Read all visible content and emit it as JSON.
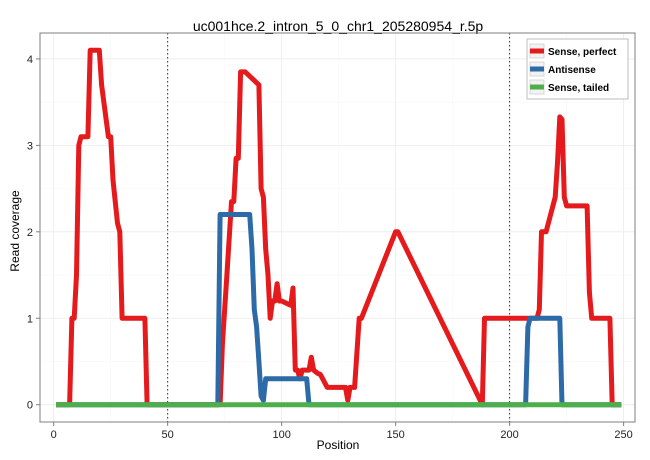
{
  "chart_data": {
    "type": "line",
    "title": "uc001hce.2_intron_5_0_chr1_205280954_r.5p",
    "xlabel": "Position",
    "ylabel": "Read coverage",
    "xlim": [
      -6,
      255
    ],
    "ylim": [
      -0.2,
      4.3
    ],
    "xticks": [
      0,
      50,
      100,
      150,
      200,
      250
    ],
    "yticks": [
      0,
      1,
      2,
      3,
      4
    ],
    "grid": true,
    "legend_position": "top-right",
    "vlines": [
      50,
      200
    ],
    "series": [
      {
        "name": "Sense, perfect",
        "color": "#e41a1c",
        "x": [
          1,
          7,
          8,
          9,
          10,
          11,
          12,
          15,
          16,
          20,
          21,
          24,
          25,
          26,
          28,
          29,
          30,
          40,
          41,
          73,
          74,
          76,
          78,
          79,
          80,
          81,
          82,
          84,
          90,
          91,
          92,
          93,
          94,
          95,
          96,
          97,
          98,
          99,
          100,
          104,
          105,
          106,
          107,
          108,
          109,
          110,
          112,
          113,
          114,
          115,
          116,
          117,
          118,
          120,
          121,
          128,
          129,
          130,
          131,
          132,
          134,
          135,
          150,
          151,
          188,
          189,
          190,
          208,
          209,
          212,
          213,
          214,
          216,
          219,
          220,
          221,
          222,
          223,
          224,
          225,
          226,
          234,
          235,
          236,
          239,
          244,
          245,
          249
        ],
        "y": [
          0,
          0,
          1,
          1,
          1.5,
          3,
          3.1,
          3.1,
          4.1,
          4.1,
          3.7,
          3.1,
          3.1,
          2.6,
          2.1,
          2,
          1,
          1,
          0,
          0,
          0.7,
          1.5,
          2.35,
          2.35,
          2.85,
          2.85,
          3.85,
          3.85,
          3.7,
          2.5,
          2.4,
          1.8,
          1.5,
          1,
          1.2,
          1.2,
          1.4,
          1.2,
          1.2,
          1.15,
          1.35,
          0.4,
          0.4,
          0.3,
          0.4,
          0.4,
          0.4,
          0.55,
          0.4,
          0.38,
          0.36,
          0.35,
          0.3,
          0.2,
          0.2,
          0.2,
          0.05,
          0.2,
          0.2,
          0.2,
          1,
          1,
          2,
          2,
          0,
          1,
          1,
          1,
          1,
          1,
          1.1,
          2,
          2,
          2.3,
          2.4,
          2.8,
          3.33,
          3.3,
          2.4,
          2.3,
          2.3,
          2.3,
          1.3,
          1,
          1,
          1,
          0,
          0
        ]
      },
      {
        "name": "Antisense",
        "color": "#2c6aa8",
        "x": [
          1,
          72,
          73,
          74,
          75,
          86,
          87,
          88,
          89,
          90,
          91,
          92,
          93,
          94,
          95,
          111,
          112,
          207,
          208,
          209,
          210,
          222,
          223,
          249
        ],
        "y": [
          0,
          0,
          2.2,
          2.2,
          2.2,
          2.2,
          1.8,
          1.1,
          0.9,
          0.5,
          0.1,
          0.05,
          0.3,
          0.3,
          0.3,
          0.3,
          0,
          0,
          0.9,
          1,
          1,
          1,
          0,
          0
        ]
      },
      {
        "name": "Sense, tailed",
        "color": "#4daf4a",
        "x": [
          1,
          249
        ],
        "y": [
          0,
          0
        ]
      }
    ]
  }
}
